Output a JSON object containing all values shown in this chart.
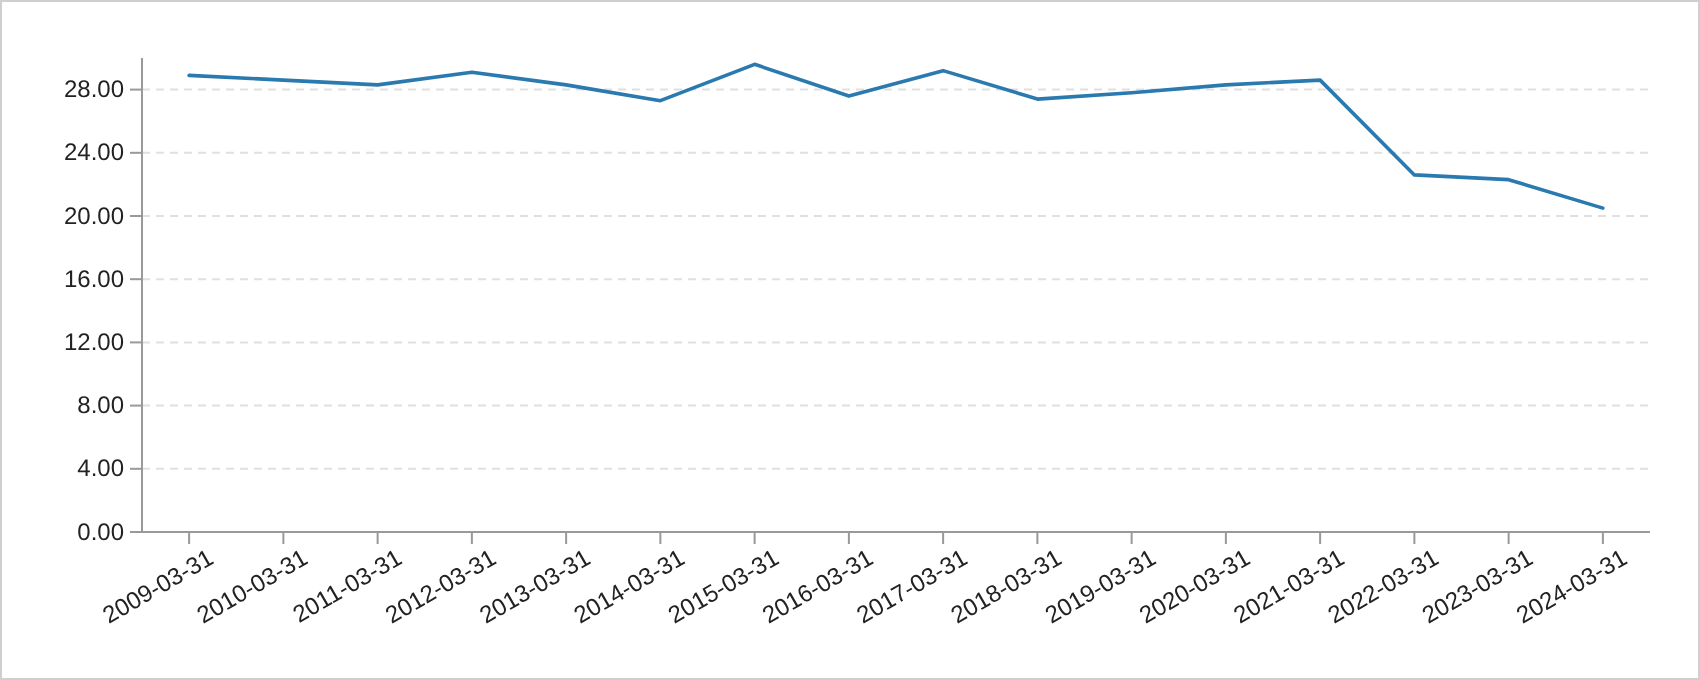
{
  "chart_data": {
    "type": "line",
    "categories": [
      "2009-03-31",
      "2010-03-31",
      "2011-03-31",
      "2012-03-31",
      "2013-03-31",
      "2014-03-31",
      "2015-03-31",
      "2016-03-31",
      "2017-03-31",
      "2018-03-31",
      "2019-03-31",
      "2020-03-31",
      "2021-03-31",
      "2022-03-31",
      "2023-03-31",
      "2024-03-31"
    ],
    "series": [
      {
        "color": "#2a7ab0",
        "values": [
          28.9,
          28.6,
          28.3,
          29.1,
          28.3,
          27.3,
          29.6,
          27.6,
          29.2,
          27.4,
          27.8,
          28.3,
          28.6,
          22.6,
          22.3,
          20.5
        ]
      }
    ],
    "ylim": [
      0,
      30
    ],
    "yticks": [
      {
        "value": 0,
        "label": "0.00"
      },
      {
        "value": 4,
        "label": "4.00"
      },
      {
        "value": 8,
        "label": "8.00"
      },
      {
        "value": 12,
        "label": "12.00"
      },
      {
        "value": 16,
        "label": "16.00"
      },
      {
        "value": 20,
        "label": "20.00"
      },
      {
        "value": 24,
        "label": "24.00"
      },
      {
        "value": 28,
        "label": "28.00"
      }
    ],
    "grid": "y",
    "marker": "none",
    "line_style": "solid"
  }
}
